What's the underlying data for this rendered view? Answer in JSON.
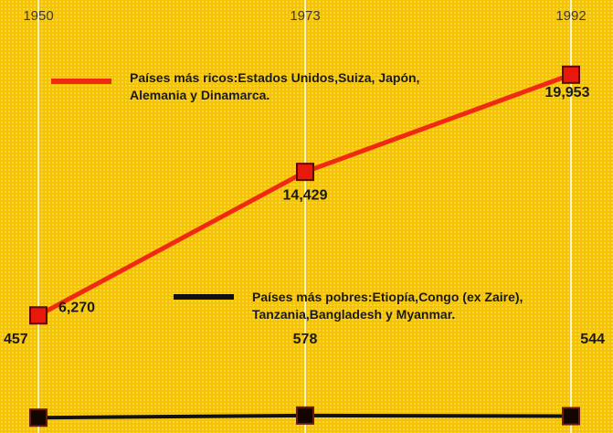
{
  "chart_data": {
    "type": "line",
    "categories": [
      "1950",
      "1973",
      "1992"
    ],
    "ylim": [
      0,
      24200
    ],
    "series": [
      {
        "name": "Países más ricos:Estados Unidos,Suiza, Japón, Alemania y Dinamarca.",
        "color": "#f02a10",
        "values": [
          6270,
          14429,
          19953
        ],
        "value_labels": [
          "6,270",
          "14,429",
          "19,953"
        ]
      },
      {
        "name": "Países más pobres:Etiopía,Congo (ex Zaire), Tanzania,Bangladesh y Myanmar.",
        "color": "#111111",
        "values": [
          457,
          578,
          544
        ],
        "value_labels": [
          "457",
          "578",
          "544"
        ]
      }
    ]
  }
}
